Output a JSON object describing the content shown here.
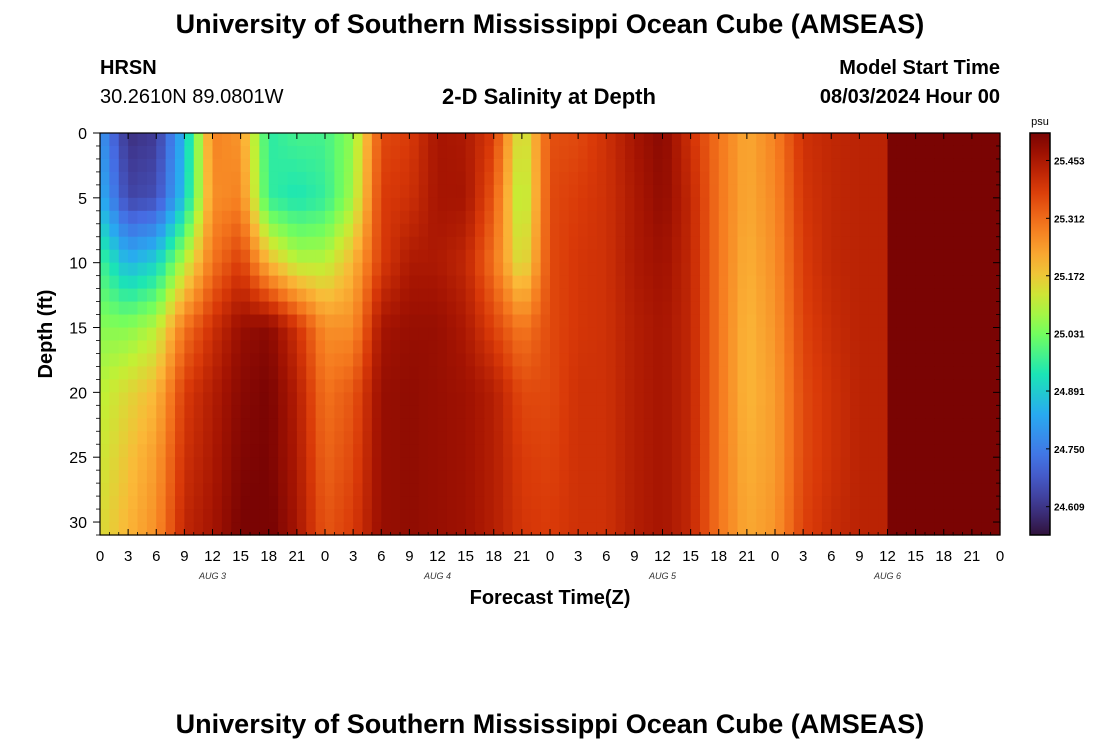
{
  "page": {
    "title": "University of Southern Mississippi Ocean Cube (AMSEAS)",
    "footer_title": "University of Southern Mississippi Ocean Cube (AMSEAS)",
    "station": {
      "name": "HRSN",
      "coords": "30.2610N  89.0801W"
    },
    "plot_title": "2-D Salinity at Depth",
    "model_start": {
      "label": "Model Start Time",
      "value": "08/03/2024 Hour 00"
    }
  },
  "chart_data": {
    "type": "heatmap",
    "title": "2-D Salinity at Depth",
    "xlabel": "Forecast Time(Z)",
    "ylabel": "Depth (ft)",
    "x_range_hours": [
      0,
      96
    ],
    "ylim": [
      0,
      31
    ],
    "y_inverted": true,
    "x_ticks": [
      "0",
      "3",
      "6",
      "9",
      "12",
      "15",
      "18",
      "21",
      "0",
      "3",
      "6",
      "9",
      "12",
      "15",
      "18",
      "21",
      "0",
      "3",
      "6",
      "9",
      "12",
      "15",
      "18",
      "21",
      "0",
      "3",
      "6",
      "9",
      "12",
      "15",
      "18",
      "21",
      "0"
    ],
    "y_ticks": [
      "0",
      "5",
      "10",
      "15",
      "20",
      "25",
      "30"
    ],
    "day_labels": [
      {
        "label": "AUG 3",
        "hour": 12
      },
      {
        "label": "AUG 4",
        "hour": 36
      },
      {
        "label": "AUG 5",
        "hour": 60
      },
      {
        "label": "AUG 6",
        "hour": 84
      }
    ],
    "colorbar": {
      "unit": "psu",
      "min": 24.54,
      "max": 25.52,
      "ticks": [
        "25.453",
        "25.312",
        "25.172",
        "25.031",
        "24.891",
        "24.750",
        "24.609"
      ]
    },
    "hours": [
      0,
      3,
      6,
      9,
      12,
      15,
      18,
      21,
      24,
      27,
      30,
      33,
      36,
      39,
      42,
      45,
      48,
      51,
      54,
      57,
      60,
      63,
      66,
      69,
      72,
      75,
      78,
      81,
      84,
      87,
      90,
      93,
      96
    ],
    "depths": [
      0,
      5,
      10,
      15,
      20,
      25,
      30
    ],
    "values": [
      [
        24.8,
        24.6,
        24.62,
        24.86,
        25.28,
        25.25,
        24.95,
        24.98,
        24.98,
        25.06,
        25.36,
        25.38,
        25.46,
        25.45,
        25.38,
        25.1,
        25.35,
        25.36,
        25.4,
        25.46,
        25.5,
        25.4,
        25.3,
        25.22,
        25.28,
        25.4,
        25.42,
        25.43,
        25.43
      ],
      [
        24.85,
        24.64,
        24.66,
        24.88,
        25.26,
        25.28,
        24.96,
        24.93,
        24.96,
        25.08,
        25.38,
        25.4,
        25.46,
        25.46,
        25.34,
        25.07,
        25.36,
        25.38,
        25.4,
        25.45,
        25.49,
        25.42,
        25.3,
        25.22,
        25.27,
        25.39,
        25.42,
        25.43,
        25.43
      ],
      [
        24.98,
        24.85,
        24.9,
        25.1,
        25.3,
        25.38,
        25.2,
        25.1,
        25.1,
        25.2,
        25.38,
        25.45,
        25.45,
        25.42,
        25.3,
        25.12,
        25.36,
        25.39,
        25.4,
        25.45,
        25.47,
        25.42,
        25.3,
        25.21,
        25.26,
        25.38,
        25.42,
        25.43,
        25.43
      ],
      [
        25.05,
        25.05,
        25.1,
        25.3,
        25.4,
        25.48,
        25.5,
        25.4,
        25.26,
        25.26,
        25.46,
        25.48,
        25.48,
        25.45,
        25.37,
        25.29,
        25.36,
        25.39,
        25.4,
        25.44,
        25.46,
        25.42,
        25.3,
        25.2,
        25.25,
        25.37,
        25.41,
        25.43,
        25.43
      ],
      [
        25.1,
        25.15,
        25.2,
        25.38,
        25.44,
        25.5,
        25.52,
        25.44,
        25.3,
        25.34,
        25.48,
        25.49,
        25.48,
        25.47,
        25.44,
        25.36,
        25.36,
        25.4,
        25.4,
        25.44,
        25.46,
        25.42,
        25.3,
        25.2,
        25.24,
        25.36,
        25.4,
        25.43,
        25.43
      ],
      [
        25.12,
        25.18,
        25.24,
        25.4,
        25.45,
        25.51,
        25.52,
        25.45,
        25.32,
        25.36,
        25.48,
        25.49,
        25.48,
        25.47,
        25.44,
        25.38,
        25.37,
        25.4,
        25.4,
        25.44,
        25.46,
        25.42,
        25.3,
        25.21,
        25.24,
        25.36,
        25.4,
        25.43,
        25.43
      ],
      [
        25.14,
        25.2,
        25.26,
        25.42,
        25.46,
        25.52,
        25.53,
        25.46,
        25.34,
        25.38,
        25.48,
        25.49,
        25.48,
        25.47,
        25.44,
        25.39,
        25.38,
        25.4,
        25.4,
        25.44,
        25.46,
        25.42,
        25.3,
        25.22,
        25.25,
        25.37,
        25.41,
        25.43,
        25.43
      ]
    ]
  }
}
